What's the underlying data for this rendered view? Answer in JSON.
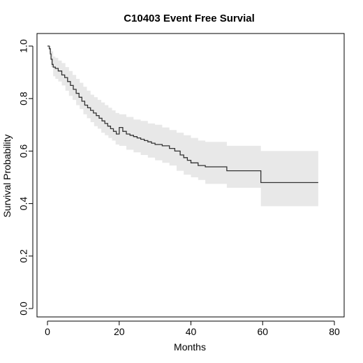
{
  "colors": {
    "curve": "#333333",
    "band": "#e8e8e8",
    "axis": "#000000",
    "background": "#ffffff"
  },
  "chart_data": {
    "type": "line",
    "title": "C10403 Event Free Survial",
    "xlabel": "Months",
    "ylabel": "Survival Probability",
    "xlim": [
      0,
      80
    ],
    "ylim": [
      0,
      1.0
    ],
    "xticks": [
      0,
      20,
      40,
      60,
      80
    ],
    "yticks": [
      0.0,
      0.2,
      0.4,
      0.6,
      0.8,
      1.0
    ],
    "xtick_labels": [
      "0",
      "20",
      "40",
      "60",
      "80"
    ],
    "ytick_labels": [
      "0.0",
      "0.2",
      "0.4",
      "0.6",
      "0.8",
      "1.0"
    ],
    "grid": false,
    "legend": "none",
    "series": [
      {
        "style": "step",
        "x": [
          0,
          0.5,
          0.8,
          1.0,
          1.3,
          1.6,
          2.2,
          3.0,
          4.0,
          4.8,
          5.6,
          6.4,
          7.2,
          8.0,
          8.8,
          9.6,
          10.4,
          11.2,
          12.0,
          12.8,
          13.6,
          14.4,
          15.2,
          16.0,
          16.8,
          17.6,
          18.4,
          19.2,
          20.0,
          21.0,
          22.0,
          23.0,
          24.0,
          25.0,
          26.0,
          27.0,
          28.0,
          29.0,
          30.0,
          32.0,
          34.0,
          35.5,
          37.0,
          38.0,
          39.0,
          40.0,
          42.0,
          44.0,
          50.0,
          59.5,
          75.5
        ],
        "y": [
          1.0,
          0.99,
          0.97,
          0.95,
          0.93,
          0.92,
          0.915,
          0.905,
          0.89,
          0.88,
          0.865,
          0.85,
          0.835,
          0.82,
          0.805,
          0.79,
          0.775,
          0.765,
          0.755,
          0.745,
          0.735,
          0.725,
          0.715,
          0.705,
          0.695,
          0.685,
          0.675,
          0.665,
          0.69,
          0.675,
          0.665,
          0.66,
          0.655,
          0.65,
          0.645,
          0.64,
          0.635,
          0.63,
          0.625,
          0.62,
          0.61,
          0.6,
          0.585,
          0.575,
          0.565,
          0.555,
          0.545,
          0.54,
          0.525,
          0.48,
          0.48
        ]
      }
    ],
    "ci_band": {
      "x": [
        0,
        0.5,
        1.0,
        1.6,
        2.2,
        3.0,
        4.0,
        5.0,
        6.0,
        7.0,
        8.0,
        9.0,
        10.0,
        11.0,
        12.0,
        13.0,
        14.0,
        15.0,
        16.0,
        17.0,
        18.0,
        19.0,
        20.0,
        22.0,
        24.0,
        26.0,
        28.0,
        30.0,
        32.0,
        34.0,
        36.0,
        38.0,
        40.0,
        42.0,
        44.0,
        50.0,
        59.5,
        75.5
      ],
      "upper": [
        1.0,
        1.0,
        0.98,
        0.96,
        0.955,
        0.945,
        0.935,
        0.92,
        0.905,
        0.89,
        0.875,
        0.86,
        0.845,
        0.83,
        0.815,
        0.805,
        0.795,
        0.785,
        0.775,
        0.765,
        0.755,
        0.745,
        0.74,
        0.73,
        0.72,
        0.715,
        0.705,
        0.7,
        0.69,
        0.68,
        0.67,
        0.66,
        0.65,
        0.64,
        0.635,
        0.62,
        0.6,
        0.6
      ],
      "lower": [
        1.0,
        0.975,
        0.92,
        0.885,
        0.875,
        0.865,
        0.85,
        0.83,
        0.81,
        0.795,
        0.775,
        0.76,
        0.74,
        0.725,
        0.71,
        0.695,
        0.685,
        0.67,
        0.66,
        0.65,
        0.64,
        0.625,
        0.62,
        0.605,
        0.595,
        0.585,
        0.575,
        0.565,
        0.555,
        0.545,
        0.525,
        0.51,
        0.5,
        0.49,
        0.475,
        0.46,
        0.39,
        0.39
      ]
    }
  }
}
